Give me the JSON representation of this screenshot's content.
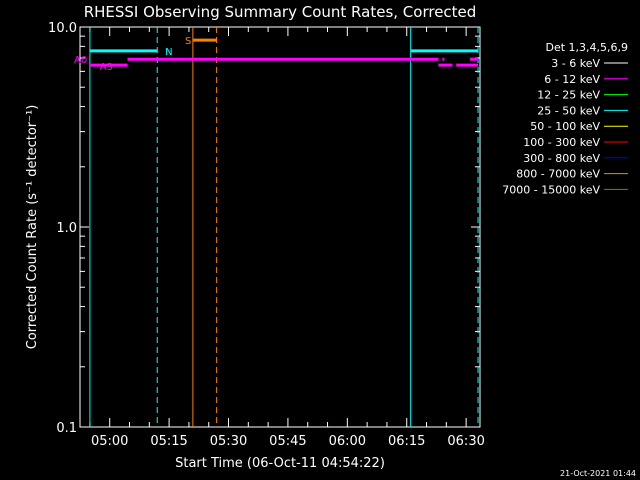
{
  "chart_data": {
    "type": "line",
    "title": "RHESSI Observing Summary Count Rates, Corrected",
    "xlabel": "Start Time (06-Oct-11 04:54:22)",
    "ylabel": "Corrected Count Rate (s⁻¹ detector⁻¹)",
    "yscale": "log",
    "ylim": [
      0.1,
      10.0
    ],
    "yticks": [
      "10.0",
      "1.0",
      "0.1"
    ],
    "xlim_minutes": [
      -7.5,
      93.5
    ],
    "xticks": [
      "05:00",
      "05:15",
      "05:30",
      "05:45",
      "06:00",
      "06:15",
      "06:30"
    ],
    "xtick_minutes": [
      0,
      15,
      30,
      45,
      60,
      75,
      90
    ],
    "legend_title": "Det 1,3,4,5,6,9",
    "legend_position": "right",
    "legend": [
      {
        "label": "3 - 6 keV",
        "color": "#ffffff"
      },
      {
        "label": "6 - 12 keV",
        "color": "#ff00ff"
      },
      {
        "label": "12 - 25 keV",
        "color": "#00ff00"
      },
      {
        "label": "25 - 50 keV",
        "color": "#00ffff"
      },
      {
        "label": "50 - 100 keV",
        "color": "#ffff00"
      },
      {
        "label": "100 - 300 keV",
        "color": "#ff0000"
      },
      {
        "label": "300 - 800 keV",
        "color": "#0000ff"
      },
      {
        "label": "800 - 7000 keV",
        "color": "#ff8000"
      },
      {
        "label": "7000 - 15000 keV",
        "color": "#808000"
      }
    ],
    "series": [
      {
        "color": "#ff00ff",
        "segments": [
          [
            -5.0,
            6.45,
            4.5,
            6.45
          ],
          [
            4.5,
            6.9,
            83.0,
            6.9
          ],
          [
            83.0,
            6.45,
            86.5,
            6.45
          ],
          [
            87.5,
            6.45,
            93.0,
            6.45
          ],
          [
            84.0,
            6.9,
            84.5,
            6.9
          ],
          [
            91.0,
            6.9,
            93.0,
            6.9
          ]
        ]
      },
      {
        "color": "#00ffff",
        "segments": [
          [
            -5.0,
            7.6,
            12.0,
            7.6
          ],
          [
            76.0,
            7.6,
            93.0,
            7.6
          ]
        ]
      },
      {
        "color": "#ff8000",
        "segments": [
          [
            21.0,
            8.6,
            27.0,
            8.6
          ]
        ]
      }
    ],
    "vlines": [
      {
        "x": -5.0,
        "color": "#00ffff",
        "style": "solid"
      },
      {
        "x": 12.0,
        "color": "#00ffff",
        "style": "dashed"
      },
      {
        "x": 21.0,
        "color": "#ff8000",
        "style": "solid"
      },
      {
        "x": 27.0,
        "color": "#ff8000",
        "style": "dashed"
      },
      {
        "x": 76.0,
        "color": "#00ffff",
        "style": "solid"
      },
      {
        "x": 93.0,
        "color": "#00ffff",
        "style": "dashed"
      }
    ],
    "annotations": [
      {
        "text": "N",
        "x": 14.0,
        "y": 7.6,
        "color": "#00ffff"
      },
      {
        "text": "S",
        "x": 19.0,
        "y": 8.6,
        "color": "#ff8000"
      },
      {
        "text": "A0",
        "x": -9.0,
        "y": 6.9,
        "color": "#ff00ff"
      },
      {
        "text": "A3",
        "x": -2.5,
        "y": 6.4,
        "color": "#ff00ff"
      }
    ],
    "footer": "21-Oct-2021 01:44"
  }
}
